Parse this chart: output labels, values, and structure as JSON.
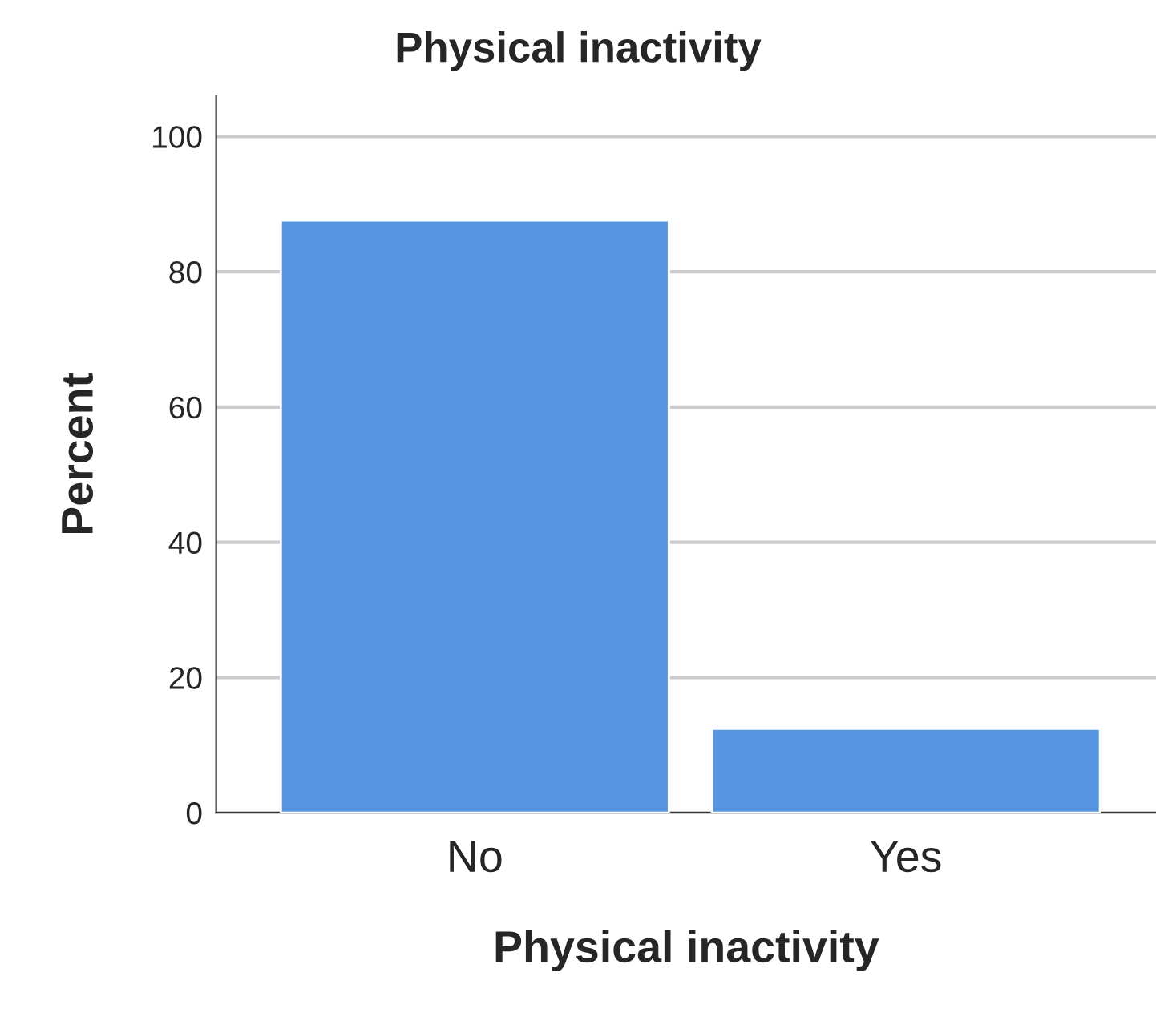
{
  "chart_data": {
    "type": "bar",
    "title": "Physical inactivity",
    "xlabel": "Physical inactivity",
    "ylabel": "Percent",
    "categories": [
      "No",
      "Yes"
    ],
    "values": [
      87.6,
      12.4
    ],
    "color": "#5595e2",
    "ylim": [
      0,
      106
    ],
    "yticks": [
      0,
      20,
      40,
      60,
      80,
      100
    ],
    "grid": "y"
  }
}
